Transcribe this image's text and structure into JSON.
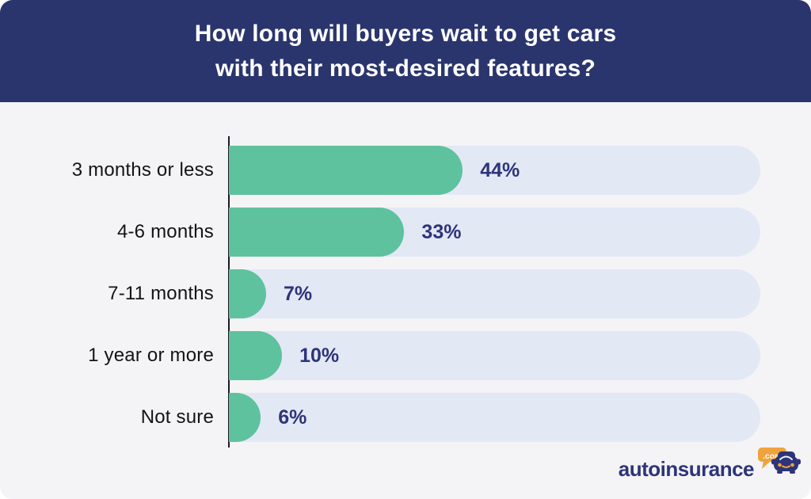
{
  "header": {
    "title": "How long will buyers wait to get cars\nwith their most-desired features?",
    "background_color": "#2A356E",
    "text_color": "#FFFFFF"
  },
  "chart_data": {
    "type": "bar",
    "orientation": "horizontal",
    "title": "How long will buyers wait to get cars with their most-desired features?",
    "categories": [
      "3 months or less",
      "4-6 months",
      "7-11 months",
      "1 year or more",
      "Not sure"
    ],
    "values": [
      44,
      33,
      7,
      10,
      6
    ],
    "value_labels": [
      "44%",
      "33%",
      "7%",
      "10%",
      "6%"
    ],
    "xlabel": "",
    "ylabel": "",
    "xlim": [
      0,
      100
    ],
    "grid": false,
    "legend": false,
    "bar_color": "#5EC29E",
    "track_color": "#E3E8F5",
    "value_label_color": "#2D3478",
    "category_label_color": "#141414",
    "axis_color": "#1B1B24",
    "background_color": "#F4F4F6"
  },
  "footer": {
    "brand": "autoinsurance",
    "brand_suffix": ".com",
    "brand_color": "#2D3478",
    "accent_color": "#F0A33C",
    "icon": "car-speech-bubble-icon"
  }
}
